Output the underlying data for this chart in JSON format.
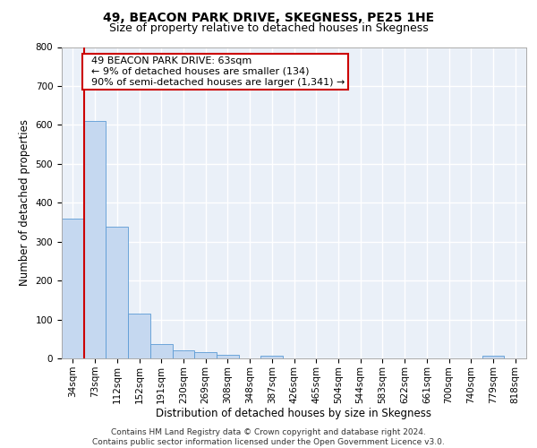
{
  "title": "49, BEACON PARK DRIVE, SKEGNESS, PE25 1HE",
  "subtitle": "Size of property relative to detached houses in Skegness",
  "xlabel": "Distribution of detached houses by size in Skegness",
  "ylabel": "Number of detached properties",
  "categories": [
    "34sqm",
    "73sqm",
    "112sqm",
    "152sqm",
    "191sqm",
    "230sqm",
    "269sqm",
    "308sqm",
    "348sqm",
    "387sqm",
    "426sqm",
    "465sqm",
    "504sqm",
    "544sqm",
    "583sqm",
    "622sqm",
    "661sqm",
    "700sqm",
    "740sqm",
    "779sqm",
    "818sqm"
  ],
  "values": [
    358,
    611,
    338,
    115,
    36,
    20,
    15,
    10,
    0,
    8,
    0,
    0,
    0,
    0,
    0,
    0,
    0,
    0,
    0,
    8,
    0
  ],
  "bar_color": "#c5d8f0",
  "bar_edge_color": "#5b9bd5",
  "ylim": [
    0,
    800
  ],
  "yticks": [
    0,
    100,
    200,
    300,
    400,
    500,
    600,
    700,
    800
  ],
  "red_line_x": 0.52,
  "annotation_text": "  49 BEACON PARK DRIVE: 63sqm\n  ← 9% of detached houses are smaller (134)\n  90% of semi-detached houses are larger (1,341) →",
  "annotation_box_color": "#ffffff",
  "annotation_box_edge_color": "#cc0000",
  "red_line_color": "#cc0000",
  "bg_color": "#eaf0f8",
  "footer_text": "Contains HM Land Registry data © Crown copyright and database right 2024.\nContains public sector information licensed under the Open Government Licence v3.0.",
  "title_fontsize": 10,
  "subtitle_fontsize": 9,
  "axis_label_fontsize": 8.5,
  "tick_fontsize": 7.5,
  "annotation_fontsize": 8,
  "footer_fontsize": 6.5
}
